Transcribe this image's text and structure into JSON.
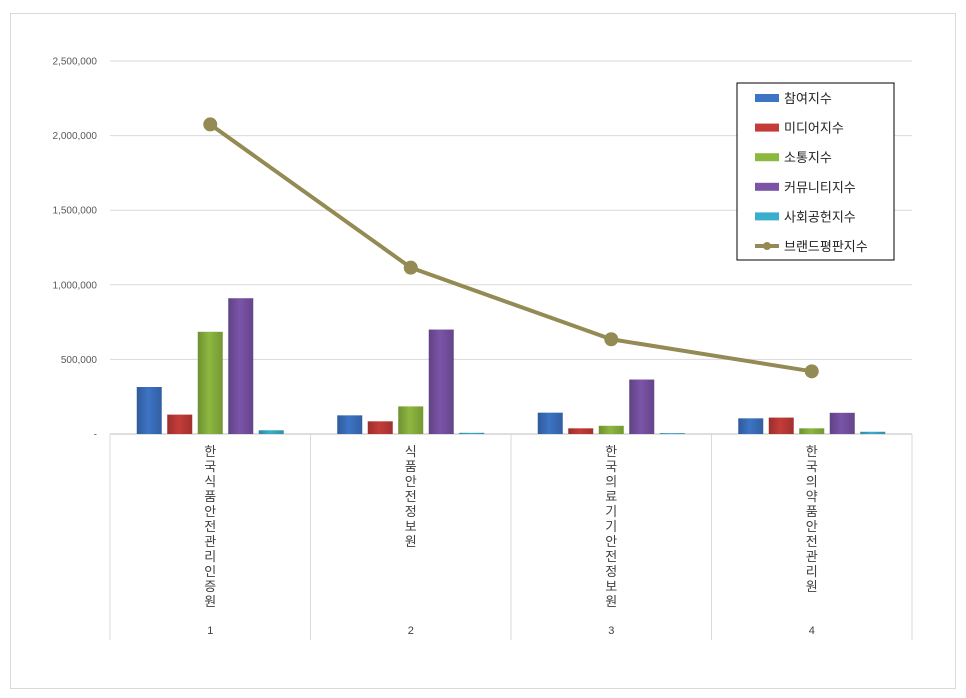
{
  "chart_data": {
    "type": "bar",
    "y_ticks": [
      "2,500,000",
      "2,000,000",
      "1,500,000",
      "1,000,000",
      "500,000",
      "-"
    ],
    "ylim": [
      0,
      2500000
    ],
    "grid": true,
    "legend_position": "top-right",
    "categories": [
      "1",
      "2",
      "3",
      "4"
    ],
    "category_names": [
      "한국식품안전관리인증원",
      "식품안전정보원",
      "한국의료기기안전정보원",
      "한국의약품안전관리원"
    ],
    "series": [
      {
        "name": "참여지수",
        "kind": "bar",
        "color": "#3d74c4",
        "values": [
          315000,
          125000,
          143000,
          105000
        ]
      },
      {
        "name": "미디어지수",
        "kind": "bar",
        "color": "#c43c39",
        "values": [
          130000,
          85000,
          38000,
          110000
        ]
      },
      {
        "name": "소통지수",
        "kind": "bar",
        "color": "#8db840",
        "values": [
          685000,
          185000,
          55000,
          38000
        ]
      },
      {
        "name": "커뮤니티지수",
        "kind": "bar",
        "color": "#7b54a8",
        "values": [
          910000,
          700000,
          365000,
          142000
        ]
      },
      {
        "name": "사회공헌지수",
        "kind": "bar",
        "color": "#3aaecd",
        "values": [
          25000,
          8000,
          6000,
          15000
        ]
      },
      {
        "name": "브랜드평판지수",
        "kind": "line",
        "color": "#948a54",
        "values": [
          2075000,
          1115000,
          635000,
          420000
        ]
      }
    ]
  }
}
